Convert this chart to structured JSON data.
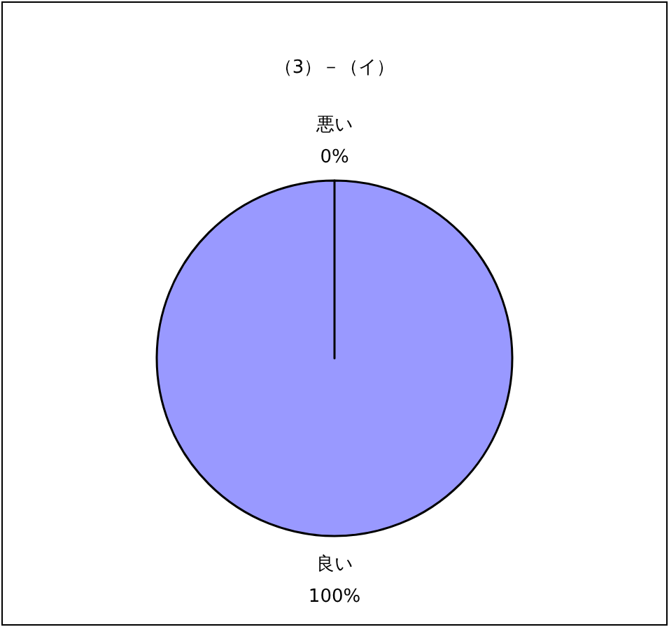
{
  "chart_data": {
    "type": "pie",
    "title": "（3）－（イ）",
    "categories": [
      "悪い",
      "良い"
    ],
    "values": [
      0,
      100
    ],
    "colors": [
      "#9999ff",
      "#9999ff"
    ],
    "value_labels": [
      "0%",
      "100%"
    ]
  }
}
